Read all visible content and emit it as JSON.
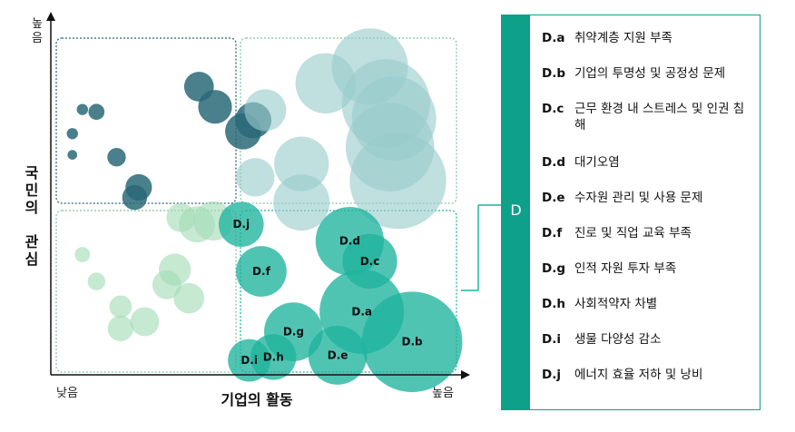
{
  "chart_data": {
    "type": "scatter",
    "xlabel": "기업의 활동",
    "ylabel": "국민의 관심",
    "x_tick_low": "낮음",
    "x_tick_high": "높음",
    "y_tick_high": "높음",
    "xlim": [
      0,
      100
    ],
    "ylim": [
      0,
      100
    ],
    "colors": {
      "dark": "#2a6878",
      "light": "#99cccb",
      "mint": "#a3dcb5",
      "teal": "#1fb39d",
      "frame_dark": "#2a6878",
      "frame_teal": "#1fb39d",
      "frame_mint": "#7fc7a0"
    },
    "series": [
      {
        "group": "dark",
        "points": [
          {
            "x": 35.5,
            "y": 85,
            "r": 3.7
          },
          {
            "x": 39.5,
            "y": 79,
            "r": 4.2
          },
          {
            "x": 49,
            "y": 75,
            "r": 4.5
          },
          {
            "x": 46.5,
            "y": 71.7,
            "r": 4.5
          },
          {
            "x": 4,
            "y": 71,
            "r": 1.4
          },
          {
            "x": 15,
            "y": 64,
            "r": 2.3
          },
          {
            "x": 4,
            "y": 64.7,
            "r": 1.2
          },
          {
            "x": 20.5,
            "y": 55,
            "r": 3.3
          },
          {
            "x": 19.5,
            "y": 52,
            "r": 3.1
          },
          {
            "x": 6.5,
            "y": 78.2,
            "r": 1.4
          },
          {
            "x": 10,
            "y": 77.5,
            "r": 2.0
          }
        ]
      },
      {
        "group": "light",
        "points": [
          {
            "x": 78,
            "y": 91,
            "r": 9.5
          },
          {
            "x": 67,
            "y": 86,
            "r": 7.5
          },
          {
            "x": 82,
            "y": 80,
            "r": 11
          },
          {
            "x": 84,
            "y": 75.5,
            "r": 10.5
          },
          {
            "x": 83,
            "y": 67,
            "r": 11
          },
          {
            "x": 85,
            "y": 57,
            "r": 12
          },
          {
            "x": 52,
            "y": 78,
            "r": 5.2
          },
          {
            "x": 61,
            "y": 62,
            "r": 6.8
          },
          {
            "x": 61,
            "y": 50.5,
            "r": 7
          },
          {
            "x": 49.5,
            "y": 58,
            "r": 4.8
          }
        ]
      },
      {
        "group": "mint",
        "points": [
          {
            "x": 31,
            "y": 46,
            "r": 3.6
          },
          {
            "x": 35,
            "y": 44,
            "r": 4.5
          },
          {
            "x": 39,
            "y": 45,
            "r": 4.9
          },
          {
            "x": 6.5,
            "y": 35,
            "r": 1.9
          },
          {
            "x": 29.5,
            "y": 30.5,
            "r": 4.0
          },
          {
            "x": 27.5,
            "y": 26,
            "r": 3.6
          },
          {
            "x": 33,
            "y": 22,
            "r": 3.8
          },
          {
            "x": 10,
            "y": 27,
            "r": 2.2
          },
          {
            "x": 16,
            "y": 19.5,
            "r": 2.8
          },
          {
            "x": 22,
            "y": 15,
            "r": 3.6
          },
          {
            "x": 16,
            "y": 13,
            "r": 3.2
          }
        ]
      },
      {
        "group": "teal",
        "points": [
          {
            "code": "D.a",
            "x": 76,
            "y": 18,
            "r": 10.5
          },
          {
            "code": "D.b",
            "x": 88.5,
            "y": 9,
            "r": 12.5
          },
          {
            "code": "D.c",
            "x": 78,
            "y": 33,
            "r": 6.8
          },
          {
            "code": "D.d",
            "x": 73,
            "y": 39,
            "r": 8.5
          },
          {
            "code": "D.e",
            "x": 70,
            "y": 5,
            "r": 7.3
          },
          {
            "code": "D.f",
            "x": 51,
            "y": 30,
            "r": 6.3
          },
          {
            "code": "D.g",
            "x": 59,
            "y": 12,
            "r": 7.3
          },
          {
            "code": "D.h",
            "x": 54,
            "y": 4.5,
            "r": 5.7
          },
          {
            "code": "D.i",
            "x": 48,
            "y": 3.5,
            "r": 5.3
          },
          {
            "code": "D.j",
            "x": 46,
            "y": 44,
            "r": 5.6
          }
        ]
      }
    ]
  },
  "legend": {
    "group_label": "D",
    "items": [
      {
        "code": "D.a",
        "text": "취약계층 지원 부족"
      },
      {
        "code": "D.b",
        "text": "기업의 투명성 및 공정성 문제"
      },
      {
        "code": "D.c",
        "text": "근무 환경 내 스트레스 및 인권 침해"
      },
      {
        "code": "D.d",
        "text": "대기오염"
      },
      {
        "code": "D.e",
        "text": "수자원 관리 및 사용 문제"
      },
      {
        "code": "D.f",
        "text": "진로 및 직업 교육 부족"
      },
      {
        "code": "D.g",
        "text": "인적 자원 투자 부족"
      },
      {
        "code": "D.h",
        "text": "사회적약자  차별"
      },
      {
        "code": "D.i",
        "text": "생물 다양성 감소"
      },
      {
        "code": "D.j",
        "text": "에너지 효율 저하 및 낭비"
      }
    ]
  }
}
